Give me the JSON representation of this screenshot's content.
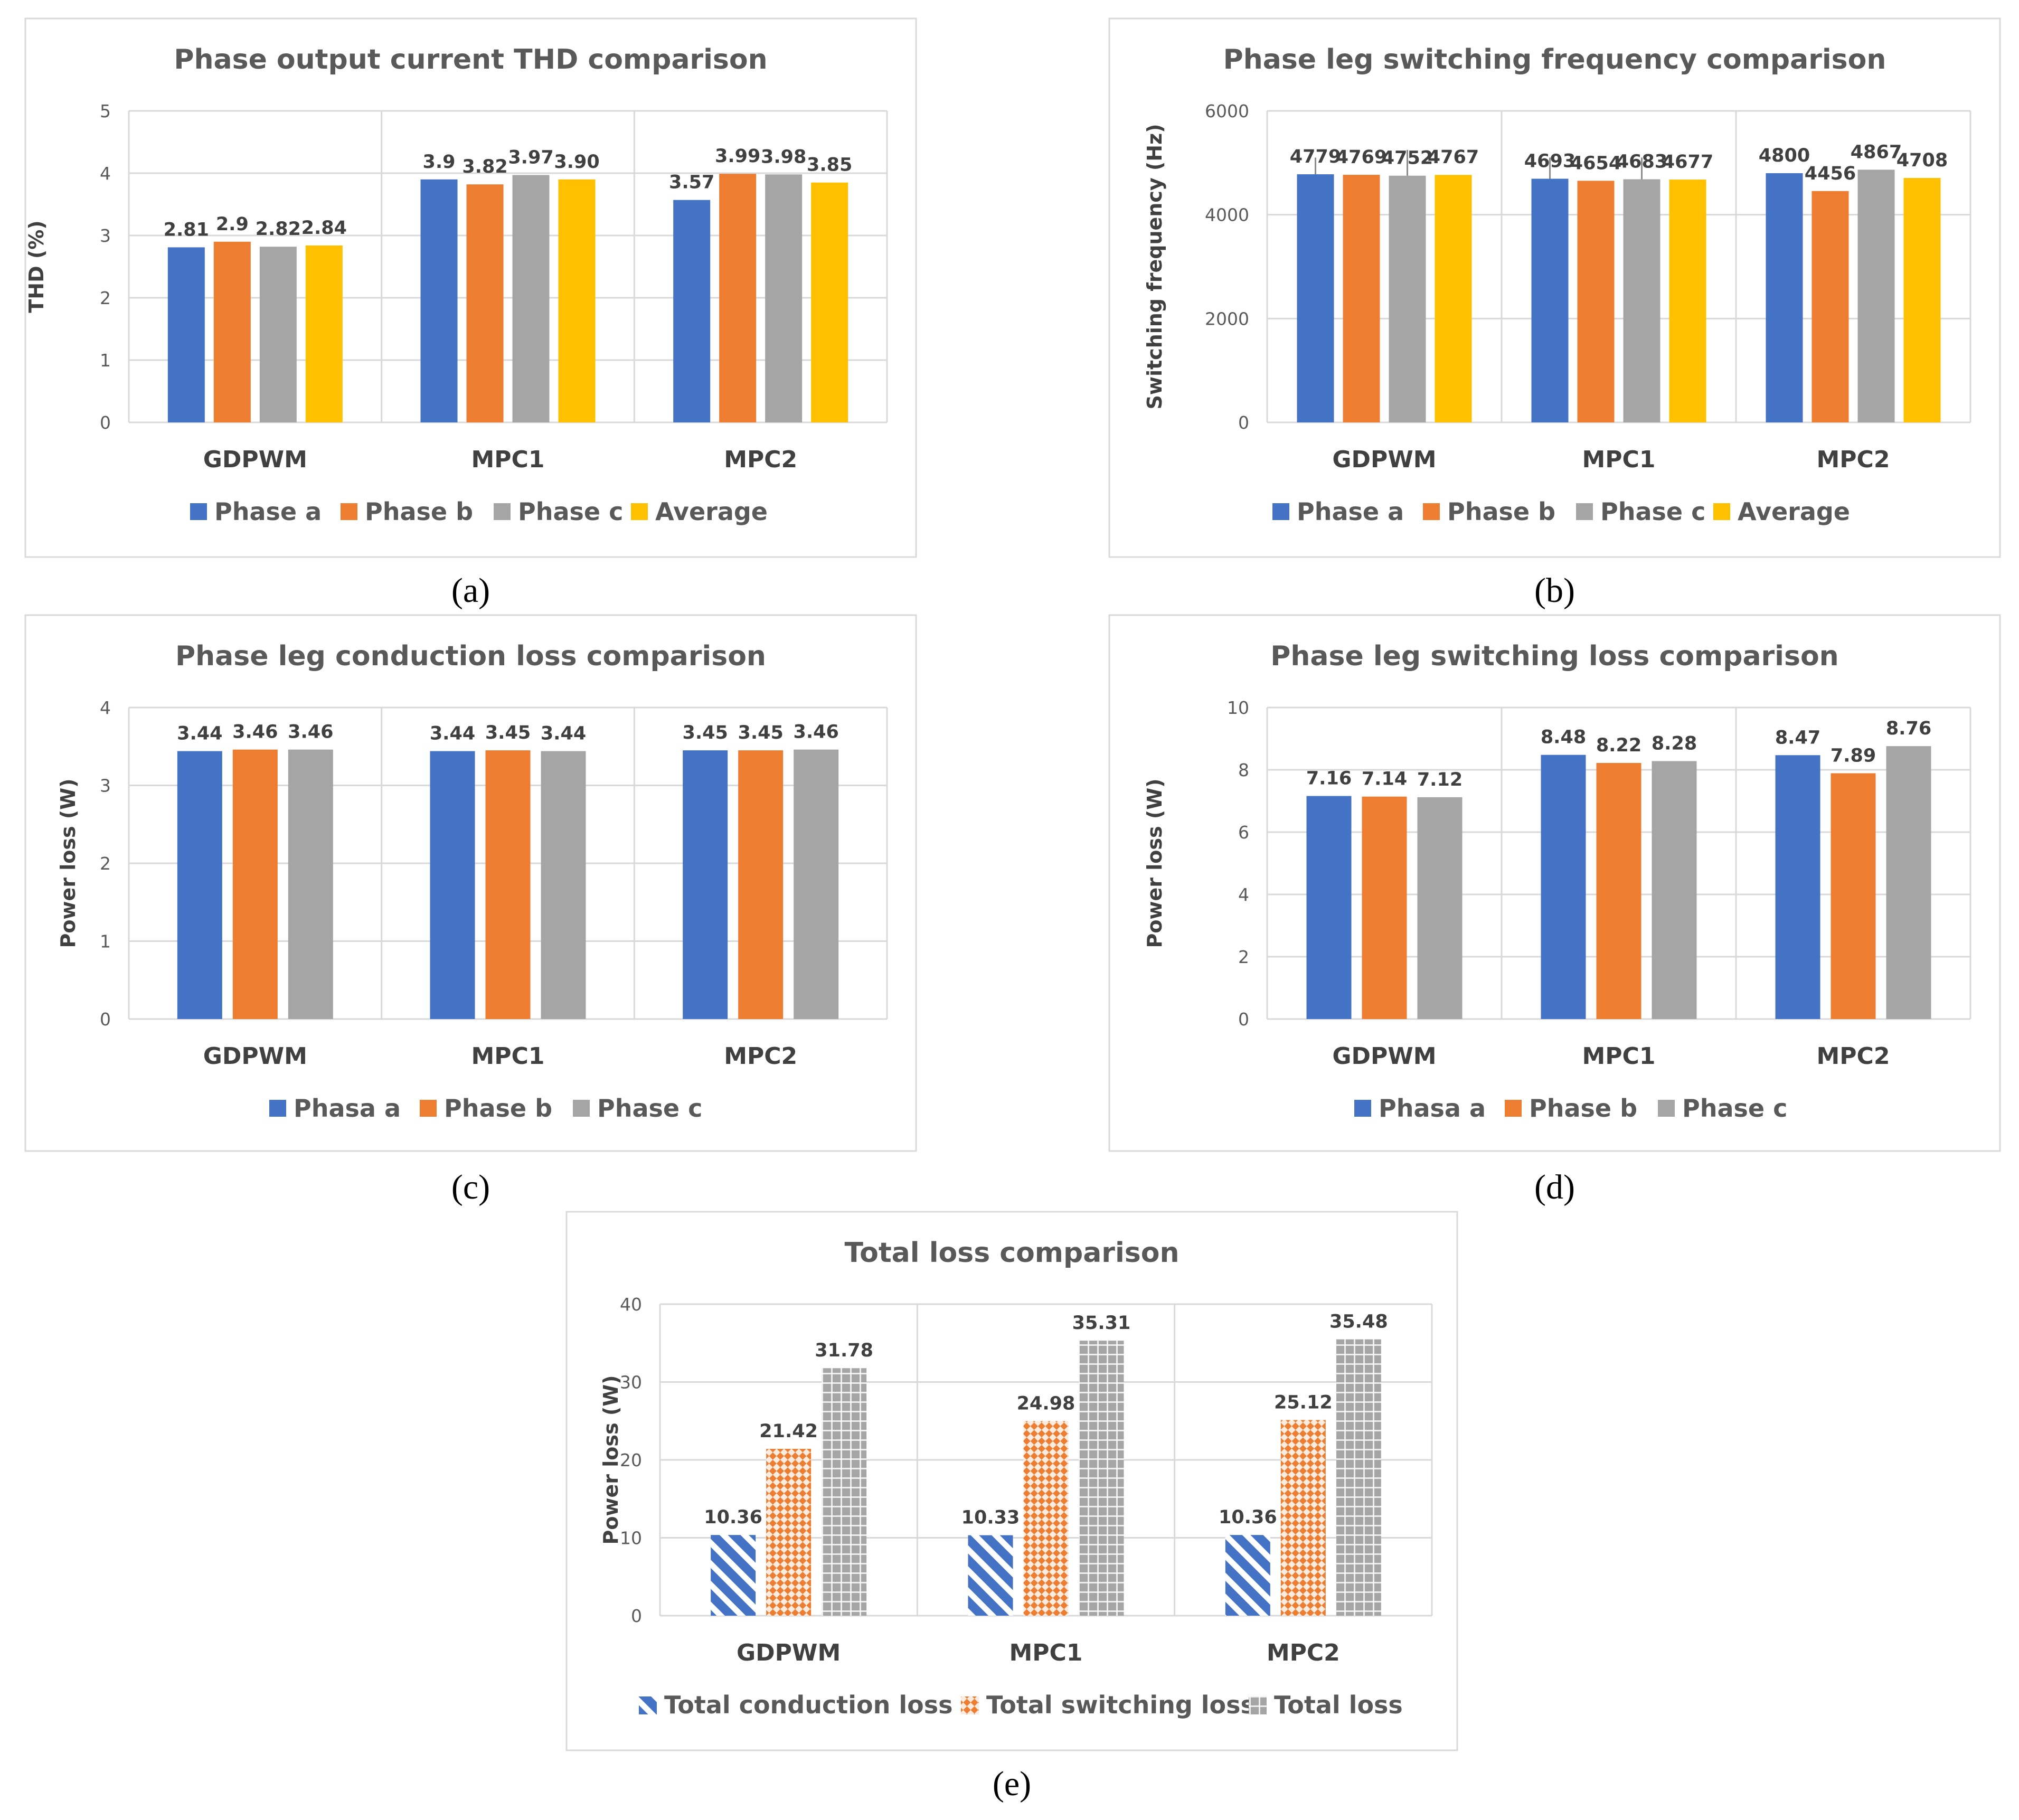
{
  "colors": {
    "phase_a": "#4472C4",
    "phase_b": "#ED7D31",
    "phase_c": "#A5A5A5",
    "average": "#FFC000"
  },
  "chart_data": [
    {
      "panel_label": "(a)",
      "type": "bar",
      "title": "Phase output current THD comparison",
      "ylabel": "THD (%)",
      "xlabel": "",
      "ylim": [
        0,
        5
      ],
      "yticks": [
        "0",
        "1",
        "2",
        "3",
        "4",
        "5"
      ],
      "categories": [
        "GDPWM",
        "MPC1",
        "MPC2"
      ],
      "series": [
        {
          "name": "Phase a",
          "values": [
            2.81,
            3.9,
            3.57
          ],
          "labels": [
            "2.81",
            "3.9",
            "3.57"
          ]
        },
        {
          "name": "Phase b",
          "values": [
            2.9,
            3.82,
            3.99
          ],
          "labels": [
            "2.9",
            "3.82",
            "3.99"
          ]
        },
        {
          "name": "Phase c",
          "values": [
            2.82,
            3.97,
            3.98
          ],
          "labels": [
            "2.82",
            "3.97",
            "3.98"
          ]
        },
        {
          "name": "Average",
          "values": [
            2.84,
            3.9,
            3.85
          ],
          "labels": [
            "2.84",
            "3.90",
            "3.85"
          ]
        }
      ],
      "legend_position": "bottom"
    },
    {
      "panel_label": "(b)",
      "type": "bar",
      "title": "Phase leg switching frequency comparison",
      "ylabel": "Switching frequency (Hz)",
      "xlabel": "",
      "ylim": [
        0,
        6000
      ],
      "yticks": [
        "0",
        "2000",
        "4000",
        "6000"
      ],
      "categories": [
        "GDPWM",
        "MPC1",
        "MPC2"
      ],
      "series": [
        {
          "name": "Phase a",
          "values": [
            4779,
            4693,
            4800
          ],
          "labels": [
            "4779",
            "4693",
            "4800"
          ],
          "error_upper": [
            5100,
            5100,
            null
          ]
        },
        {
          "name": "Phase b",
          "values": [
            4769,
            4654,
            4456
          ],
          "labels": [
            "4769",
            "4654",
            "4456"
          ]
        },
        {
          "name": "Phase c",
          "values": [
            4752,
            4683,
            4867
          ],
          "labels": [
            "4752",
            "4683",
            "4867"
          ],
          "error_upper": [
            5250,
            5100,
            null
          ]
        },
        {
          "name": "Average",
          "values": [
            4767,
            4677,
            4708
          ],
          "labels": [
            "4767",
            "4677",
            "4708"
          ]
        }
      ],
      "legend_position": "bottom"
    },
    {
      "panel_label": "(c)",
      "type": "bar",
      "title": "Phase leg conduction loss comparison",
      "ylabel": "Power loss (W)",
      "xlabel": "",
      "ylim": [
        0,
        4
      ],
      "yticks": [
        "0",
        "1",
        "2",
        "3",
        "4"
      ],
      "categories": [
        "GDPWM",
        "MPC1",
        "MPC2"
      ],
      "series": [
        {
          "name": "Phasa a",
          "values": [
            3.44,
            3.44,
            3.45
          ],
          "labels": [
            "3.44",
            "3.44",
            "3.45"
          ]
        },
        {
          "name": "Phase b",
          "values": [
            3.46,
            3.45,
            3.45
          ],
          "labels": [
            "3.46",
            "3.45",
            "3.45"
          ]
        },
        {
          "name": "Phase c",
          "values": [
            3.46,
            3.44,
            3.46
          ],
          "labels": [
            "3.46",
            "3.44",
            "3.46"
          ]
        }
      ],
      "legend_position": "bottom"
    },
    {
      "panel_label": "(d)",
      "type": "bar",
      "title": "Phase leg switching loss comparison",
      "ylabel": "Power loss (W)",
      "xlabel": "",
      "ylim": [
        0,
        10
      ],
      "yticks": [
        "0",
        "2",
        "4",
        "6",
        "8",
        "10"
      ],
      "categories": [
        "GDPWM",
        "MPC1",
        "MPC2"
      ],
      "series": [
        {
          "name": "Phasa a",
          "values": [
            7.16,
            8.48,
            8.47
          ],
          "labels": [
            "7.16",
            "8.48",
            "8.47"
          ]
        },
        {
          "name": "Phase b",
          "values": [
            7.14,
            8.22,
            7.89
          ],
          "labels": [
            "7.14",
            "8.22",
            "7.89"
          ]
        },
        {
          "name": "Phase c",
          "values": [
            7.12,
            8.28,
            8.76
          ],
          "labels": [
            "7.12",
            "8.28",
            "8.76"
          ]
        }
      ],
      "legend_position": "bottom"
    },
    {
      "panel_label": "(e)",
      "type": "bar",
      "title": "Total loss comparison",
      "ylabel": "Power loss (W)",
      "xlabel": "",
      "ylim": [
        0,
        40
      ],
      "yticks": [
        "0",
        "10",
        "20",
        "30",
        "40"
      ],
      "categories": [
        "GDPWM",
        "MPC1",
        "MPC2"
      ],
      "series": [
        {
          "name": "Total conduction loss",
          "values": [
            10.36,
            10.33,
            10.36
          ],
          "labels": [
            "10.36",
            "10.33",
            "10.36"
          ],
          "pattern": "diagonal-stripes"
        },
        {
          "name": "Total switching loss",
          "values": [
            21.42,
            24.98,
            25.12
          ],
          "labels": [
            "21.42",
            "24.98",
            "25.12"
          ],
          "pattern": "checker"
        },
        {
          "name": "Total loss",
          "values": [
            31.78,
            35.31,
            35.48
          ],
          "labels": [
            "31.78",
            "35.31",
            "35.48"
          ],
          "pattern": "dotted-grid"
        }
      ],
      "legend_position": "bottom"
    }
  ]
}
